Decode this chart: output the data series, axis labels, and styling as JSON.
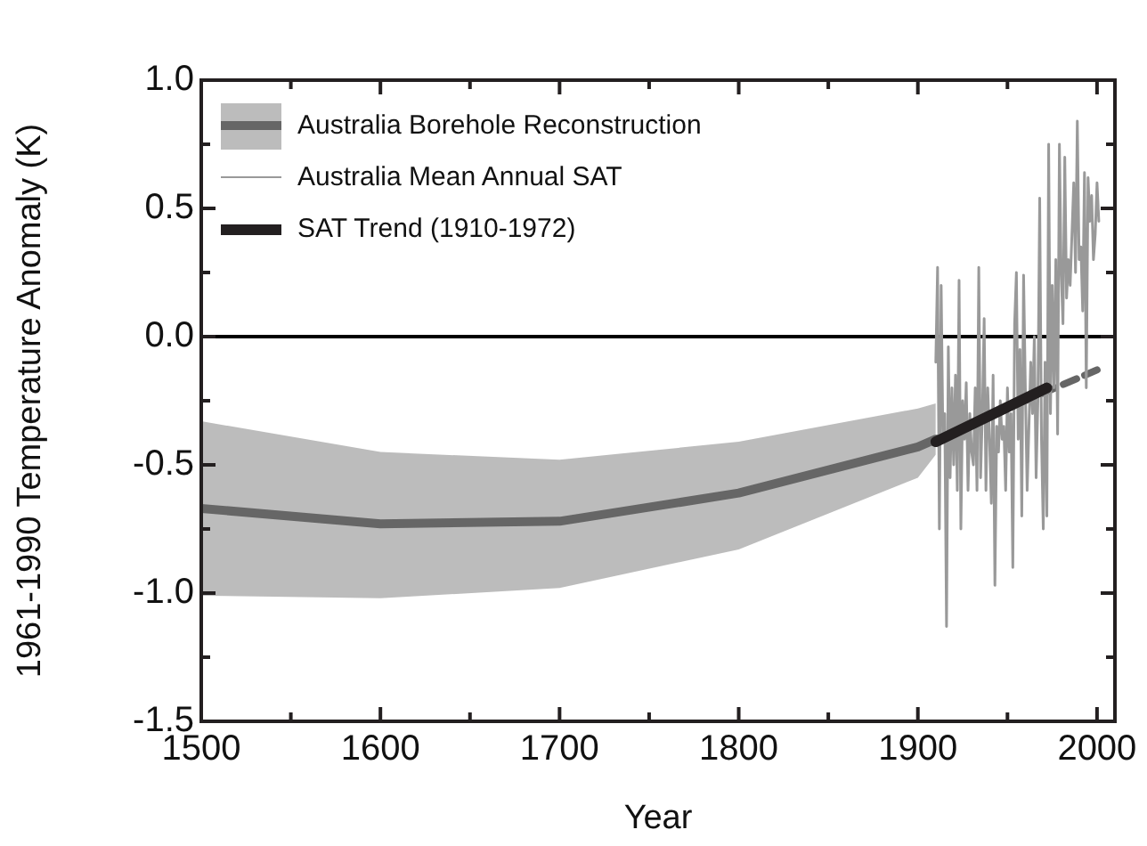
{
  "chart_data": {
    "type": "line",
    "xlabel": "Year",
    "ylabel": "1961-1990 Temperature Anomaly (K)",
    "xlim": [
      1500,
      2010
    ],
    "xticks": [
      1500,
      {
        "value": 1550,
        "label": null
      },
      1600,
      {
        "value": 1650,
        "label": null
      },
      1700,
      {
        "value": 1750,
        "label": null
      },
      1800,
      {
        "value": 1850,
        "label": null
      },
      1900,
      {
        "value": 1950,
        "label": null
      },
      2000
    ],
    "ylim": [
      -1.5,
      1.0
    ],
    "yticks": [
      {
        "value": -1.5,
        "label": "-1.5"
      },
      {
        "value": -1.25,
        "label": null
      },
      {
        "value": -1.0,
        "label": "-1.0"
      },
      {
        "value": -0.75,
        "label": null
      },
      {
        "value": -0.5,
        "label": "-0.5"
      },
      {
        "value": -0.25,
        "label": null
      },
      {
        "value": 0,
        "label": "0.0"
      },
      {
        "value": 0.25,
        "label": null
      },
      {
        "value": 0.5,
        "label": "0.5"
      },
      {
        "value": 0.75,
        "label": null
      },
      {
        "value": 1.0,
        "label": "1.0"
      }
    ],
    "grid": false,
    "legend": "top left",
    "ref_lines": [
      {
        "axis": "y",
        "value": 0,
        "color": "#000000"
      }
    ],
    "series": [
      {
        "name": "Australia Borehole Reconstruction",
        "color": "#666666",
        "x": [
          1500,
          1600,
          1700,
          1800,
          1900,
          1910
        ],
        "values": [
          -0.67,
          -0.73,
          -0.72,
          -0.61,
          -0.43,
          -0.4
        ],
        "lower": [
          -1.01,
          -1.02,
          -0.98,
          -0.83,
          -0.55,
          -0.46
        ],
        "upper": [
          -0.33,
          -0.45,
          -0.48,
          -0.41,
          -0.28,
          -0.26
        ]
      },
      {
        "line_style": "dashed",
        "color": "#666666",
        "x": [
          1910,
          2000
        ],
        "values": [
          -0.4,
          -0.13
        ]
      },
      {
        "name": "Australia Mean Annual SAT",
        "color": "#999999",
        "x": [
          1910,
          1911,
          1912,
          1913,
          1914,
          1915,
          1916,
          1917,
          1918,
          1919,
          1920,
          1921,
          1922,
          1923,
          1924,
          1925,
          1926,
          1927,
          1928,
          1929,
          1930,
          1931,
          1932,
          1933,
          1934,
          1935,
          1936,
          1937,
          1938,
          1939,
          1940,
          1941,
          1942,
          1943,
          1944,
          1945,
          1946,
          1947,
          1948,
          1949,
          1950,
          1951,
          1952,
          1953,
          1954,
          1955,
          1956,
          1957,
          1958,
          1959,
          1960,
          1961,
          1962,
          1963,
          1964,
          1965,
          1966,
          1967,
          1968,
          1969,
          1970,
          1971,
          1972,
          1973,
          1974,
          1975,
          1976,
          1977,
          1978,
          1979,
          1980,
          1981,
          1982,
          1983,
          1984,
          1985,
          1986,
          1987,
          1988,
          1989,
          1990,
          1991,
          1992,
          1993,
          1994,
          1995,
          1996,
          1997,
          1998,
          1999,
          2000,
          2001
        ],
        "values": [
          -0.1,
          0.27,
          -0.75,
          0.2,
          -0.4,
          -0.3,
          -1.13,
          -0.04,
          -0.55,
          -0.2,
          -0.5,
          -0.15,
          -0.6,
          0.22,
          -0.75,
          -0.25,
          -0.4,
          -0.18,
          -0.6,
          -0.3,
          -0.45,
          -0.5,
          -0.2,
          -0.6,
          0.27,
          -0.55,
          -0.3,
          0.07,
          -0.6,
          -0.2,
          -0.4,
          -0.65,
          -0.15,
          -0.97,
          -0.35,
          -0.45,
          -0.25,
          -0.4,
          -0.35,
          -0.6,
          -0.2,
          -0.45,
          -0.3,
          -0.9,
          0.05,
          0.25,
          -0.4,
          -0.05,
          -0.7,
          0.24,
          -0.2,
          -0.6,
          -0.35,
          -0.1,
          -0.3,
          0.0,
          -0.55,
          -0.25,
          0.54,
          -0.4,
          -0.75,
          -0.1,
          -0.7,
          0.75,
          -0.3,
          0.2,
          -0.2,
          0.3,
          -0.38,
          0.75,
          0.25,
          0.05,
          0.7,
          0.15,
          0.3,
          0.2,
          0.4,
          0.6,
          0.25,
          0.84,
          0.3,
          0.35,
          0.1,
          0.64,
          -0.2,
          0.62,
          0.45,
          0.55,
          0.3,
          0.4,
          0.6,
          0.45
        ]
      },
      {
        "name": "SAT Trend (1910-1972)",
        "color": "#231f20",
        "x": [
          1910,
          1972
        ],
        "values": [
          -0.41,
          -0.2
        ]
      }
    ]
  }
}
